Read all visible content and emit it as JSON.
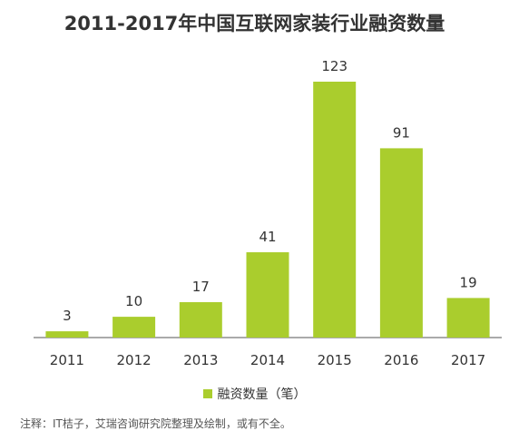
{
  "title": "2011-2017年中国互联网家装行业融资数量",
  "chart_data": {
    "type": "bar",
    "title": "2011-2017年中国互联网家装行业融资数量",
    "categories": [
      "2011",
      "2012",
      "2013",
      "2014",
      "2015",
      "2016",
      "2017"
    ],
    "series": [
      {
        "name": "融资数量（笔）",
        "values": [
          3,
          10,
          17,
          41,
          123,
          91,
          19
        ],
        "color": "#aacd2d"
      }
    ],
    "data_labels": [
      "3",
      "10",
      "17",
      "41",
      "123",
      "91",
      "19"
    ],
    "ylim": [
      0,
      140
    ],
    "grid": false,
    "legend": "bottom",
    "xlabel": "",
    "ylabel": ""
  },
  "legend": {
    "label": "融资数量（笔）",
    "color": "#aacd2d"
  },
  "note": "注释：IT桔子，艾瑞咨询研究院整理及绘制，或有不全。"
}
